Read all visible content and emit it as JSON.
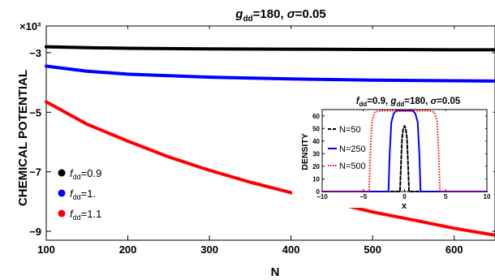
{
  "chart_data": [
    {
      "type": "line",
      "title_parts": {
        "sym": "g",
        "sub": "dd",
        "tail": "=180, ",
        "sigma": "σ",
        "tail2": "=0.05"
      },
      "xlabel": "N",
      "ylabel": "CHEMICAL POTENTIAL",
      "y_multiplier": "×10³",
      "xlim": [
        100,
        650
      ],
      "ylim": [
        -9.3,
        -2.1
      ],
      "x_ticks": [
        100,
        200,
        300,
        400,
        500,
        600
      ],
      "y_ticks": [
        -3,
        -5,
        -7,
        -9
      ],
      "y_tick_labels": [
        "−3",
        "−5",
        "−7",
        "−9"
      ],
      "legend_position": "left-middle",
      "series": [
        {
          "label_sym": "f",
          "label_sub": "dd",
          "label_tail": "=0.9",
          "color": "#000000",
          "x": [
            100,
            150,
            200,
            300,
            400,
            500,
            600,
            650
          ],
          "y": [
            -2.8,
            -2.83,
            -2.85,
            -2.87,
            -2.88,
            -2.89,
            -2.9,
            -2.9
          ]
        },
        {
          "label_sym": "f",
          "label_sub": "dd",
          "label_tail": "=1.",
          "color": "#0000ff",
          "x": [
            100,
            150,
            200,
            300,
            400,
            500,
            600,
            650
          ],
          "y": [
            -3.45,
            -3.62,
            -3.72,
            -3.82,
            -3.88,
            -3.92,
            -3.94,
            -3.95
          ]
        },
        {
          "label_sym": "f",
          "label_sub": "dd",
          "label_tail": "=1.1",
          "color": "#ff0000",
          "x": [
            100,
            150,
            200,
            250,
            300,
            350,
            400,
            450,
            500,
            550,
            600,
            650
          ],
          "y": [
            -4.65,
            -5.4,
            -5.97,
            -6.5,
            -6.95,
            -7.35,
            -7.7,
            -8.02,
            -8.35,
            -8.62,
            -8.9,
            -9.13
          ]
        }
      ]
    },
    {
      "type": "line",
      "title_parts": {
        "sym1": "f",
        "sub1": "dd",
        "tail1": "=0.9, ",
        "sym2": "g",
        "sub2": "dd",
        "tail2": "=180, ",
        "sigma": "σ",
        "tail3": "=0.05"
      },
      "xlabel": "x",
      "ylabel": "DENSITY",
      "xlim": [
        -10,
        10
      ],
      "ylim": [
        0,
        65
      ],
      "x_ticks": [
        -10,
        -5,
        0,
        5,
        10
      ],
      "x_tick_labels": [
        "−10",
        "−5",
        "0",
        "5",
        "10"
      ],
      "y_ticks": [
        0,
        10,
        20,
        30,
        40,
        50,
        60
      ],
      "legend_position": "top-left",
      "series": [
        {
          "name": "N=50",
          "color": "#000000",
          "dash": "dashed",
          "x": [
            -10,
            -0.55,
            -0.45,
            -0.3,
            -0.15,
            0,
            0.15,
            0.3,
            0.45,
            0.55,
            10
          ],
          "y": [
            0,
            0,
            18,
            42,
            50,
            52,
            50,
            42,
            18,
            0,
            0
          ]
        },
        {
          "name": "N=250",
          "color": "#0000ff",
          "dash": "solid",
          "x": [
            -10,
            -1.95,
            -1.8,
            -1.6,
            -1.3,
            -1,
            1,
            1.3,
            1.6,
            1.8,
            1.95,
            10
          ],
          "y": [
            0,
            0,
            30,
            55,
            62,
            64,
            64,
            62,
            55,
            30,
            0,
            0
          ]
        },
        {
          "name": "N=500",
          "color": "#ff0000",
          "dash": "dotted",
          "x": [
            -10,
            -4.3,
            -4.15,
            -3.95,
            -3.6,
            -3,
            3,
            3.6,
            3.95,
            4.15,
            4.3,
            10
          ],
          "y": [
            0,
            0,
            30,
            56,
            63,
            64,
            64,
            63,
            56,
            30,
            0,
            0
          ]
        }
      ]
    }
  ]
}
